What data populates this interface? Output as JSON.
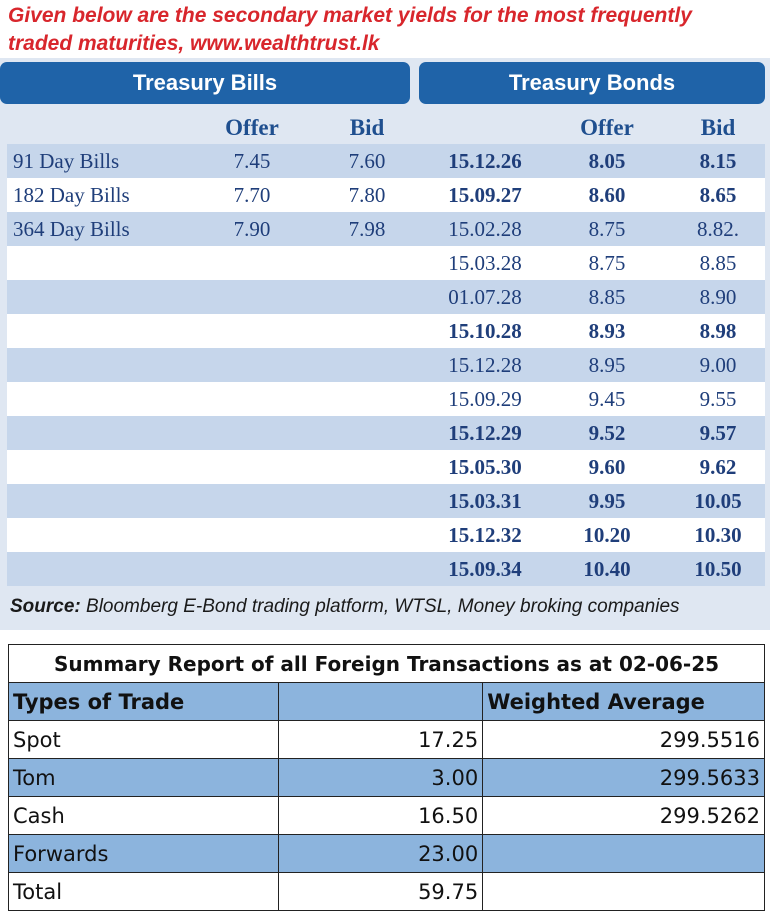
{
  "intro": {
    "line1": "Given below are the secondary market yields for the most frequently",
    "line2": "traded maturities, www.wealthtrust.lk"
  },
  "treasury_bills": {
    "title": "Treasury Bills",
    "offer_label": "Offer",
    "bid_label": "Bid",
    "rows": [
      {
        "name": "91 Day Bills",
        "offer": "7.45",
        "bid": "7.60"
      },
      {
        "name": "182 Day Bills",
        "offer": "7.70",
        "bid": "7.80"
      },
      {
        "name": "364 Day Bills",
        "offer": "7.90",
        "bid": "7.98"
      }
    ]
  },
  "treasury_bonds": {
    "title": "Treasury Bonds",
    "offer_label": "Offer",
    "bid_label": "Bid",
    "rows": [
      {
        "maturity": "15.12.26",
        "offer": "8.05",
        "bid": "8.15"
      },
      {
        "maturity": "15.09.27",
        "offer": "8.60",
        "bid": "8.65"
      },
      {
        "maturity": "15.02.28",
        "offer": "8.75",
        "bid": "8.82."
      },
      {
        "maturity": "15.03.28",
        "offer": "8.75",
        "bid": "8.85"
      },
      {
        "maturity": "01.07.28",
        "offer": "8.85",
        "bid": "8.90"
      },
      {
        "maturity": "15.10.28",
        "offer": "8.93",
        "bid": "8.98"
      },
      {
        "maturity": "15.12.28",
        "offer": "8.95",
        "bid": "9.00"
      },
      {
        "maturity": "15.09.29",
        "offer": "9.45",
        "bid": "9.55"
      },
      {
        "maturity": "15.12.29",
        "offer": "9.52",
        "bid": "9.57"
      },
      {
        "maturity": "15.05.30",
        "offer": "9.60",
        "bid": "9.62"
      },
      {
        "maturity": "15.03.31",
        "offer": "9.95",
        "bid": "10.05"
      },
      {
        "maturity": "15.12.32",
        "offer": "10.20",
        "bid": "10.30"
      },
      {
        "maturity": "15.09.34",
        "offer": "10.40",
        "bid": "10.50"
      }
    ]
  },
  "source": {
    "label": "Source:",
    "text": " Bloomberg E-Bond trading platform, WTSL, Money broking companies"
  },
  "summary": {
    "title": "Summary Report of all Foreign Transactions as at 02-06-25",
    "col1": "Types of Trade",
    "col3": "Weighted Average",
    "rows": [
      {
        "type": "Spot",
        "amount": "17.25",
        "average": "299.5516"
      },
      {
        "type": "Tom",
        "amount": "3.00",
        "average": "299.5633"
      },
      {
        "type": "Cash",
        "amount": "16.50",
        "average": "299.5262"
      },
      {
        "type": "Forwards",
        "amount": "23.00",
        "average": ""
      },
      {
        "type": "Total",
        "amount": "59.75",
        "average": ""
      }
    ]
  },
  "colors": {
    "intro_text": "#d8262c",
    "header_bg": "#1f63a8",
    "row_alt": "#c6d6eb",
    "panel_bg": "#dfe7f2",
    "summary_highlight": "#8cb4dd"
  }
}
